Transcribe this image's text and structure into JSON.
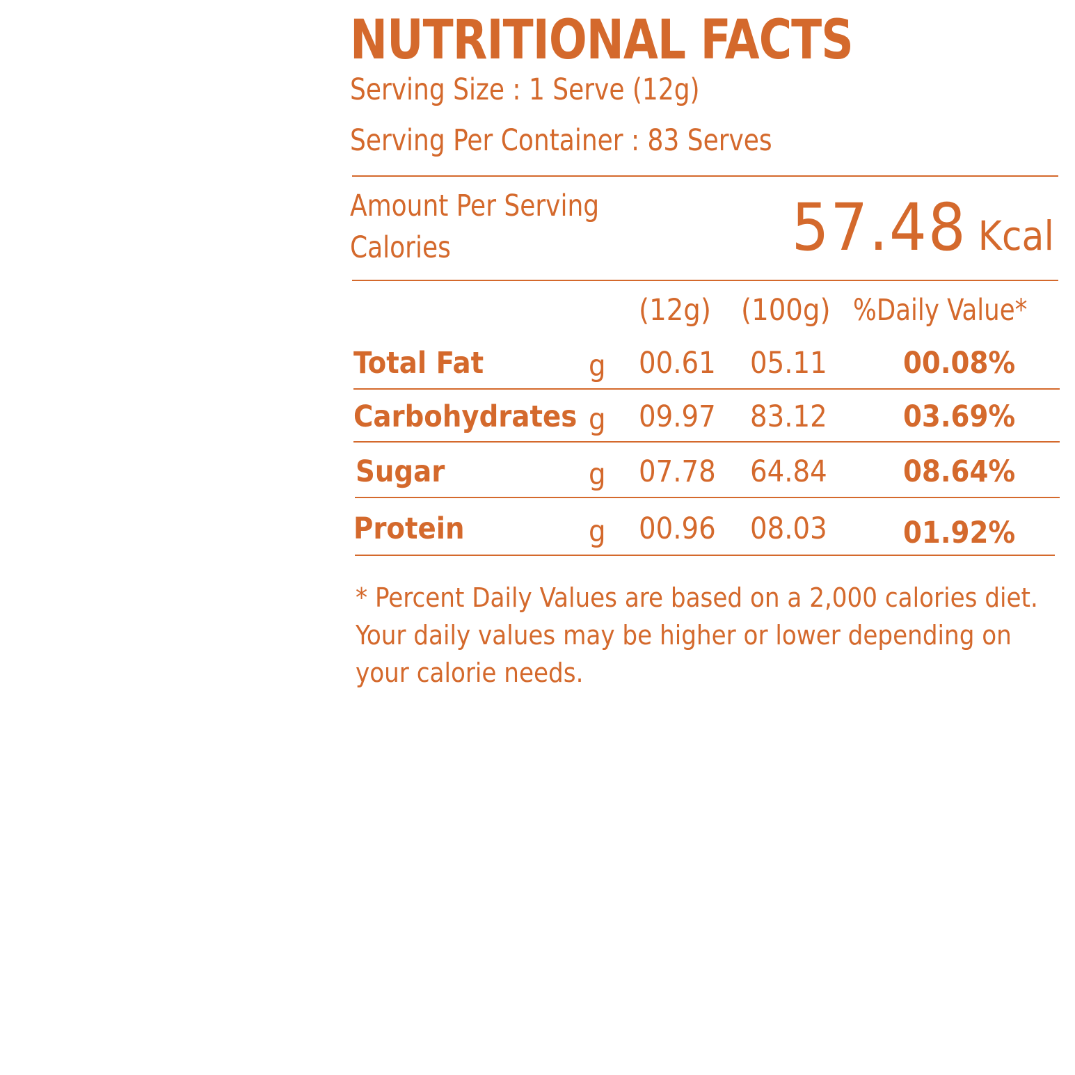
{
  "label": {
    "title": "NUTRITIONAL FACTS",
    "serving_size": "Serving Size : 1 Serve (12g)",
    "serving_per_container": "Serving Per Container : 83 Serves",
    "amount_per_serving": "Amount Per Serving",
    "calories_label": "Calories",
    "calories_value": "57.48",
    "calories_unit": "Kcal",
    "columns": {
      "per_12g": "(12g)",
      "per_100g": "(100g)",
      "daily_value": "%Daily Value*"
    },
    "rows": [
      {
        "name": "Total Fat",
        "unit": "g",
        "per_12g": "00.61",
        "per_100g": "05.11",
        "daily_value": "00.08%"
      },
      {
        "name": "Carbohydrates",
        "unit": "g",
        "per_12g": "09.97",
        "per_100g": "83.12",
        "daily_value": "03.69%"
      },
      {
        "name": "Sugar",
        "unit": "g",
        "per_12g": "07.78",
        "per_100g": "64.84",
        "daily_value": "08.64%"
      },
      {
        "name": "Protein",
        "unit": "g",
        "per_12g": "00.96",
        "per_100g": "08.03",
        "daily_value": "01.92%"
      }
    ],
    "footnote": [
      "* Percent Daily Values are based on a 2,000 calories diet.",
      "Your daily values may be higher or lower depending on",
      "your calorie needs."
    ]
  },
  "colors": {
    "text": "#d4692c",
    "background": "#ffffff"
  }
}
